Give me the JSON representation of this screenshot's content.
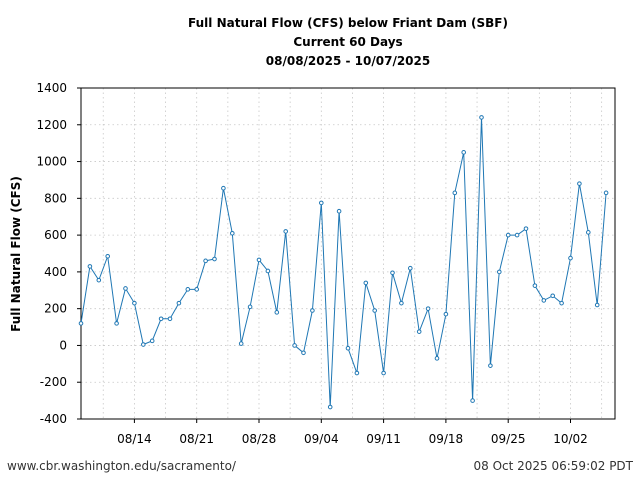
{
  "chart_data": {
    "type": "line",
    "title_lines": [
      "Full Natural Flow (CFS) below Friant Dam (SBF)",
      "Current 60 Days",
      "08/08/2025 - 10/07/2025"
    ],
    "xlabel": "",
    "ylabel": "Full Natural Flow (CFS)",
    "ylim": [
      -400,
      1400
    ],
    "yticks": [
      -400,
      -200,
      0,
      200,
      400,
      600,
      800,
      1000,
      1200,
      1400
    ],
    "x_start": "2025-08-08",
    "x_end": "2025-10-07",
    "xticks": [
      {
        "date": "2025-08-14",
        "label": "08/14"
      },
      {
        "date": "2025-08-21",
        "label": "08/21"
      },
      {
        "date": "2025-08-28",
        "label": "08/28"
      },
      {
        "date": "2025-09-04",
        "label": "09/04"
      },
      {
        "date": "2025-09-11",
        "label": "09/11"
      },
      {
        "date": "2025-09-18",
        "label": "09/18"
      },
      {
        "date": "2025-09-25",
        "label": "09/25"
      },
      {
        "date": "2025-10-02",
        "label": "10/02"
      }
    ],
    "grid": true,
    "series": [
      {
        "color": "#1f77b4",
        "points": [
          {
            "x": "2025-08-08",
            "y": 120
          },
          {
            "x": "2025-08-09",
            "y": 430
          },
          {
            "x": "2025-08-10",
            "y": 355
          },
          {
            "x": "2025-08-11",
            "y": 485
          },
          {
            "x": "2025-08-12",
            "y": 120
          },
          {
            "x": "2025-08-13",
            "y": 310
          },
          {
            "x": "2025-08-14",
            "y": 230
          },
          {
            "x": "2025-08-15",
            "y": 5
          },
          {
            "x": "2025-08-16",
            "y": 25
          },
          {
            "x": "2025-08-17",
            "y": 145
          },
          {
            "x": "2025-08-18",
            "y": 145
          },
          {
            "x": "2025-08-19",
            "y": 230
          },
          {
            "x": "2025-08-20",
            "y": 305
          },
          {
            "x": "2025-08-21",
            "y": 305
          },
          {
            "x": "2025-08-22",
            "y": 460
          },
          {
            "x": "2025-08-23",
            "y": 470
          },
          {
            "x": "2025-08-24",
            "y": 855
          },
          {
            "x": "2025-08-25",
            "y": 610
          },
          {
            "x": "2025-08-26",
            "y": 10
          },
          {
            "x": "2025-08-27",
            "y": 210
          },
          {
            "x": "2025-08-28",
            "y": 465
          },
          {
            "x": "2025-08-29",
            "y": 405
          },
          {
            "x": "2025-08-30",
            "y": 180
          },
          {
            "x": "2025-08-31",
            "y": 620
          },
          {
            "x": "2025-09-01",
            "y": 0
          },
          {
            "x": "2025-09-02",
            "y": -40
          },
          {
            "x": "2025-09-03",
            "y": 190
          },
          {
            "x": "2025-09-04",
            "y": 775
          },
          {
            "x": "2025-09-05",
            "y": -335
          },
          {
            "x": "2025-09-06",
            "y": 730
          },
          {
            "x": "2025-09-07",
            "y": -15
          },
          {
            "x": "2025-09-08",
            "y": -150
          },
          {
            "x": "2025-09-09",
            "y": 340
          },
          {
            "x": "2025-09-10",
            "y": 190
          },
          {
            "x": "2025-09-11",
            "y": -150
          },
          {
            "x": "2025-09-12",
            "y": 395
          },
          {
            "x": "2025-09-13",
            "y": 230
          },
          {
            "x": "2025-09-14",
            "y": 420
          },
          {
            "x": "2025-09-15",
            "y": 75
          },
          {
            "x": "2025-09-16",
            "y": 200
          },
          {
            "x": "2025-09-17",
            "y": -70
          },
          {
            "x": "2025-09-18",
            "y": 170
          },
          {
            "x": "2025-09-19",
            "y": 830
          },
          {
            "x": "2025-09-20",
            "y": 1050
          },
          {
            "x": "2025-09-21",
            "y": -300
          },
          {
            "x": "2025-09-22",
            "y": 1240
          },
          {
            "x": "2025-09-23",
            "y": -110
          },
          {
            "x": "2025-09-24",
            "y": 400
          },
          {
            "x": "2025-09-25",
            "y": 600
          },
          {
            "x": "2025-09-26",
            "y": 600
          },
          {
            "x": "2025-09-27",
            "y": 635
          },
          {
            "x": "2025-09-28",
            "y": 325
          },
          {
            "x": "2025-09-29",
            "y": 245
          },
          {
            "x": "2025-09-30",
            "y": 270
          },
          {
            "x": "2025-10-01",
            "y": 230
          },
          {
            "x": "2025-10-02",
            "y": 475
          },
          {
            "x": "2025-10-03",
            "y": 880
          },
          {
            "x": "2025-10-04",
            "y": 615
          },
          {
            "x": "2025-10-05",
            "y": 220
          },
          {
            "x": "2025-10-06",
            "y": 830
          }
        ]
      }
    ]
  },
  "footer": {
    "source_url": "www.cbr.washington.edu/sacramento/",
    "timestamp": "08 Oct 2025 06:59:02 PDT"
  }
}
